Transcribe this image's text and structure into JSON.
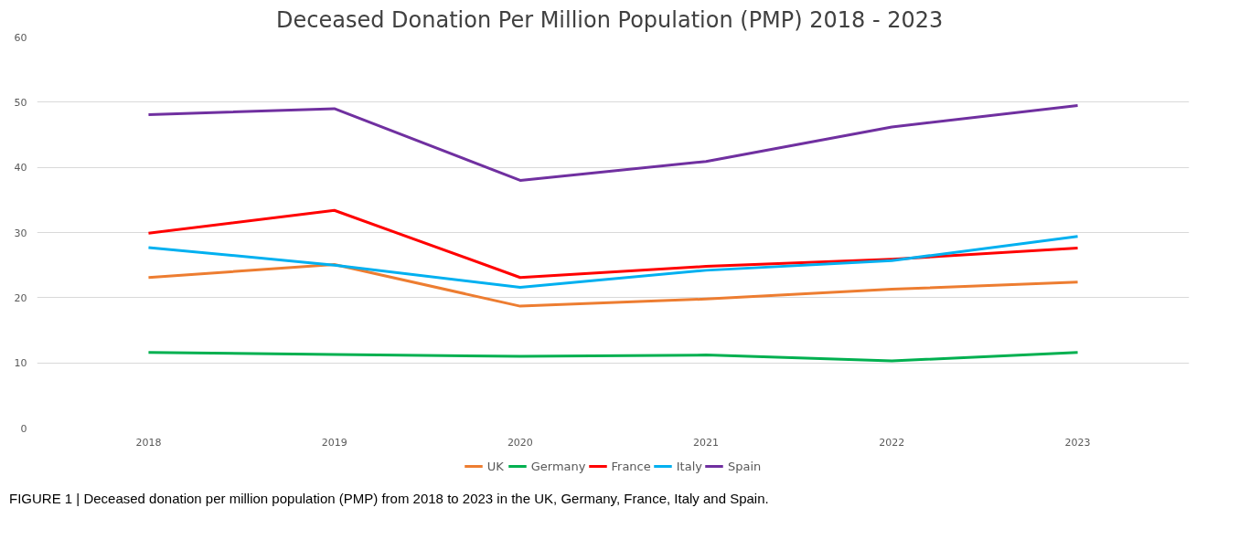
{
  "chart_data": {
    "type": "line",
    "title": "Deceased Donation Per Million Population  (PMP) 2018 - 2023",
    "categories": [
      "2018",
      "2019",
      "2020",
      "2021",
      "2022",
      "2023"
    ],
    "series": [
      {
        "name": "UK",
        "color": "#ed7d31",
        "values": [
          23.1,
          25.1,
          18.7,
          19.8,
          21.3,
          22.4
        ]
      },
      {
        "name": "Germany",
        "color": "#00b050",
        "values": [
          11.6,
          11.3,
          11.0,
          11.2,
          10.3,
          11.6
        ]
      },
      {
        "name": "France",
        "color": "#ff0000",
        "values": [
          29.9,
          33.4,
          23.1,
          24.8,
          25.9,
          27.6
        ]
      },
      {
        "name": "Italy",
        "color": "#00b0f0",
        "values": [
          27.7,
          25.0,
          21.6,
          24.2,
          25.7,
          29.4
        ]
      },
      {
        "name": "Spain",
        "color": "#7030a0",
        "values": [
          48.1,
          49.0,
          38.0,
          40.9,
          46.2,
          49.5
        ]
      }
    ],
    "ylim": [
      0,
      60
    ],
    "yticks": [
      0,
      10,
      20,
      30,
      40,
      50,
      60
    ],
    "grid": "y",
    "legend": "bottom",
    "marker": "none",
    "line_style": "solid",
    "annotations": [
      "FIGURE 1 | Deceased donation per million population (PMP) from 2018 to 2023 in the UK, Germany, France, Italy and Spain."
    ]
  }
}
